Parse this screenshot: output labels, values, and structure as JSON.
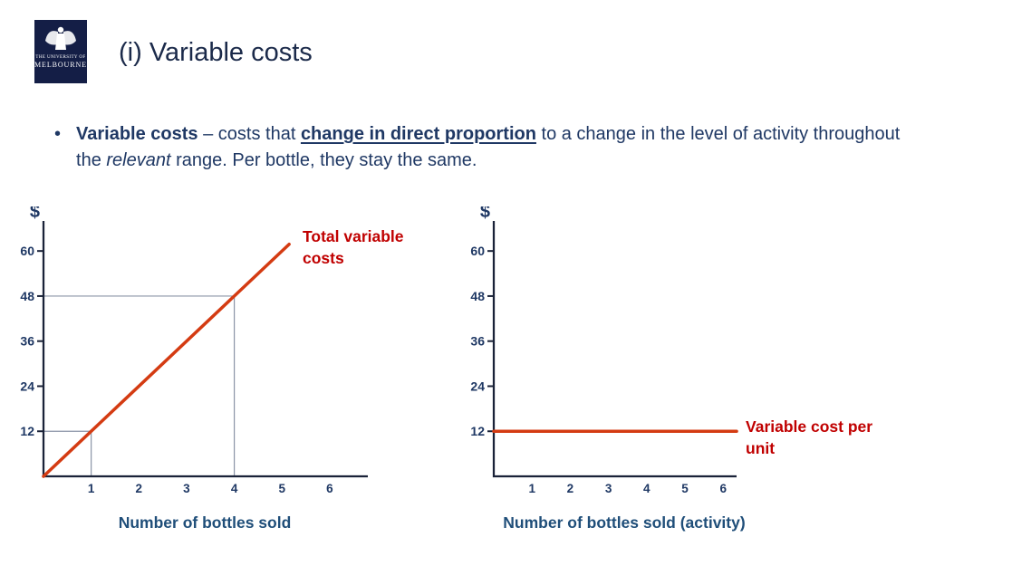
{
  "page": {
    "logo": {
      "top_text": "THE UNIVERSITY OF",
      "bottom_text": "MELBOURNE"
    },
    "title": "(i) Variable costs",
    "bullet": {
      "marker": "•",
      "lead_bold": "Variable costs",
      "seg1": " – costs that ",
      "emphasis_bold_underline": "change in direct proportion",
      "seg2": " to a change in the level of activity throughout the ",
      "emphasis_italic": "relevant",
      "seg3": " range. Per bottle, they stay the same."
    }
  },
  "colors": {
    "navy_text": "#1F3864",
    "axis": "#1A2238",
    "guide": "#8A93A6",
    "line_red": "#D43B12",
    "annotation_red": "#C00000",
    "chart_label_blue": "#1F4E79",
    "logo_navy": "#141E46"
  },
  "chart_data": [
    {
      "type": "line",
      "ylabel": "$",
      "xlabel": "Number of bottles sold",
      "y_ticks": [
        12,
        24,
        36,
        48,
        60
      ],
      "x_ticks": [
        1,
        2,
        3,
        4,
        5,
        6
      ],
      "xlim": [
        0,
        6.8
      ],
      "ylim": [
        0,
        68
      ],
      "grid": false,
      "series": [
        {
          "name": "Total variable costs",
          "points": [
            [
              0,
              0
            ],
            [
              5.15,
              61.8
            ]
          ],
          "slope_per_unit": 12
        }
      ],
      "guides": [
        {
          "x": 1,
          "y": 12
        },
        {
          "x": 4,
          "y": 48
        }
      ],
      "annotation": "Total variable costs"
    },
    {
      "type": "line",
      "ylabel": "$",
      "xlabel": "Number of bottles sold (activity)",
      "y_ticks": [
        12,
        24,
        36,
        48,
        60
      ],
      "x_ticks": [
        1,
        2,
        3,
        4,
        5,
        6
      ],
      "xlim": [
        0,
        6.35
      ],
      "ylim": [
        0,
        68
      ],
      "grid": false,
      "series": [
        {
          "name": "Variable cost per unit",
          "points": [
            [
              0,
              12
            ],
            [
              6.35,
              12
            ]
          ],
          "value_per_unit": 12
        }
      ],
      "guides": [],
      "annotation": "Variable cost per unit"
    }
  ]
}
